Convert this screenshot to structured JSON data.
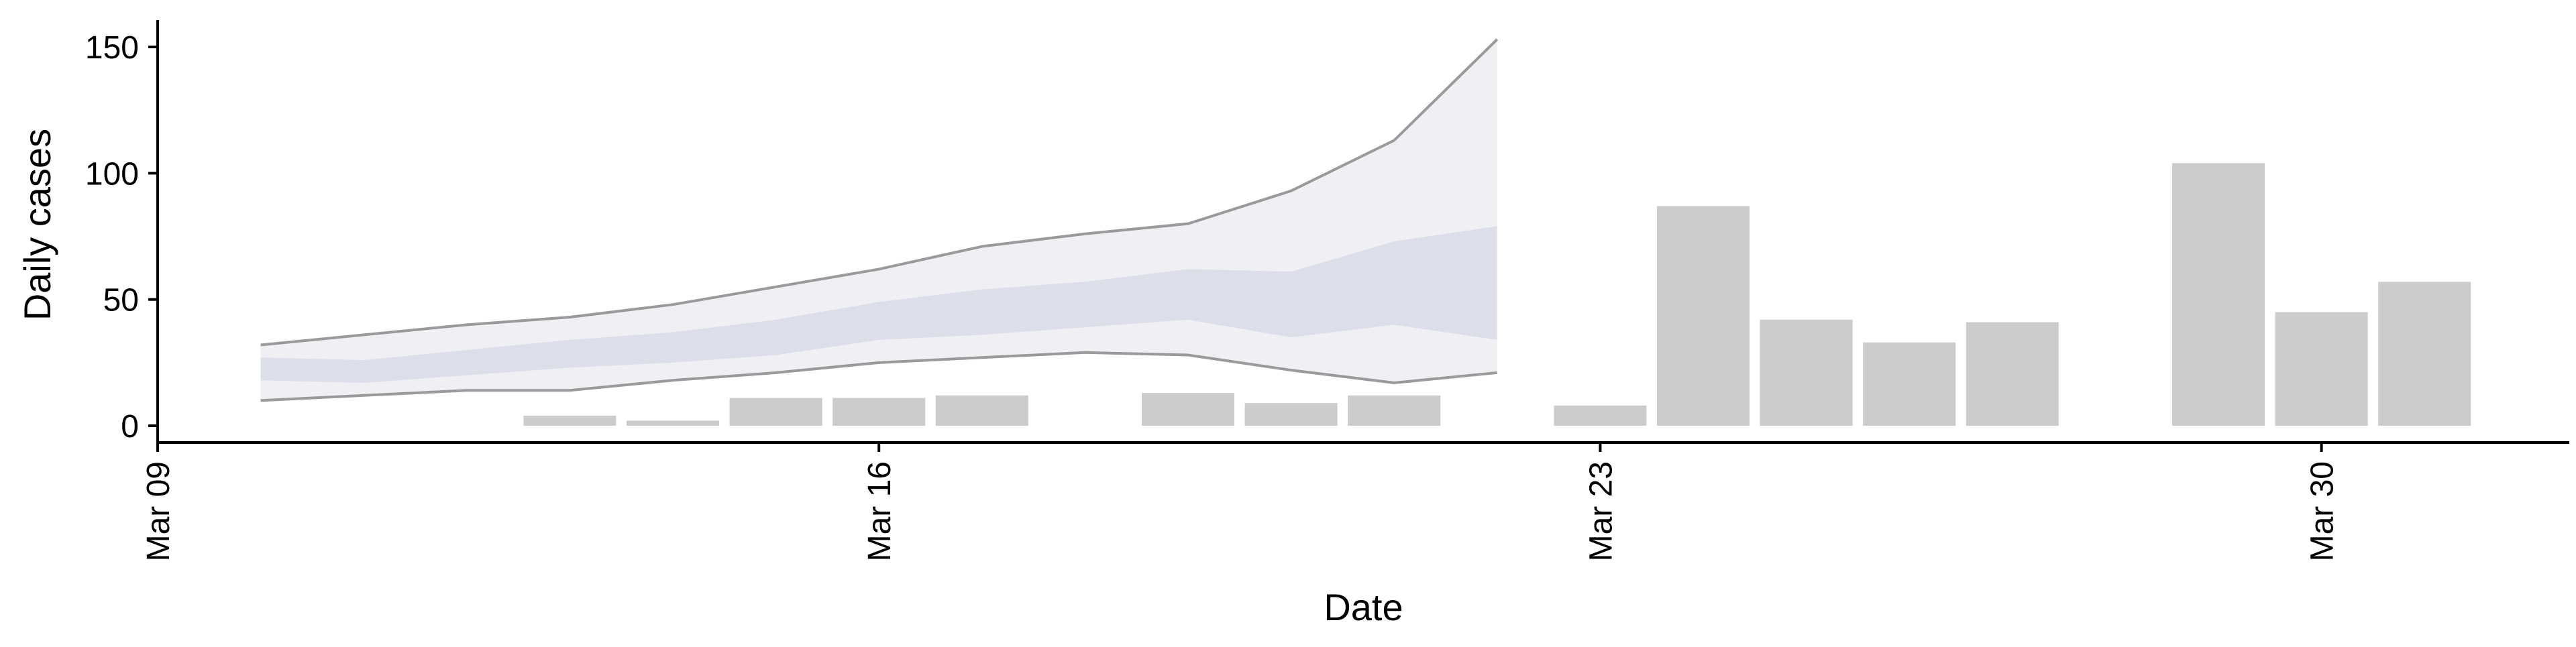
{
  "chart_data": {
    "type": "bar",
    "title": "",
    "xlabel": "Date",
    "ylabel": "Daily cases",
    "ylim": [
      0,
      160
    ],
    "xlim": [
      "2020-03-09",
      "2020-04-02"
    ],
    "x_ticks": [
      {
        "date": "2020-03-09",
        "label": "Mar 09"
      },
      {
        "date": "2020-03-16",
        "label": "Mar 16"
      },
      {
        "date": "2020-03-23",
        "label": "Mar 23"
      },
      {
        "date": "2020-03-30",
        "label": "Mar 30"
      }
    ],
    "y_ticks": [
      0,
      50,
      100,
      150
    ],
    "grid": false,
    "legend": "none",
    "series": [
      {
        "type": "bar",
        "x": [
          "2020-03-13",
          "2020-03-14",
          "2020-03-15",
          "2020-03-16",
          "2020-03-17",
          "2020-03-19",
          "2020-03-20",
          "2020-03-21",
          "2020-03-23",
          "2020-03-24",
          "2020-03-25",
          "2020-03-26",
          "2020-03-27",
          "2020-03-29",
          "2020-03-30",
          "2020-03-31"
        ],
        "values": [
          4,
          2,
          11,
          11,
          12,
          13,
          9,
          12,
          8,
          87,
          42,
          33,
          41,
          104,
          45,
          57
        ]
      },
      {
        "type": "band",
        "x": [
          "2020-03-10",
          "2020-03-11",
          "2020-03-12",
          "2020-03-13",
          "2020-03-14",
          "2020-03-15",
          "2020-03-16",
          "2020-03-17",
          "2020-03-18",
          "2020-03-19",
          "2020-03-20",
          "2020-03-21",
          "2020-03-22"
        ],
        "outer_lower": [
          10,
          12,
          14,
          14,
          18,
          21,
          25,
          27,
          29,
          28,
          22,
          17,
          21
        ],
        "outer_upper": [
          32,
          36,
          40,
          43,
          48,
          55,
          62,
          71,
          76,
          80,
          93,
          113,
          153
        ],
        "inner_lower": [
          18,
          17,
          20,
          23,
          25,
          28,
          34,
          36,
          39,
          42,
          35,
          40,
          34
        ],
        "inner_upper": [
          27,
          26,
          30,
          34,
          37,
          42,
          49,
          54,
          57,
          62,
          61,
          73,
          79
        ]
      }
    ],
    "colors": {
      "bars": "#cccccc",
      "outer_band": "#eaeaf0",
      "inner_band": "#d8dbe6",
      "band_edge": "#8a8a8a",
      "axis": "#000000"
    }
  }
}
